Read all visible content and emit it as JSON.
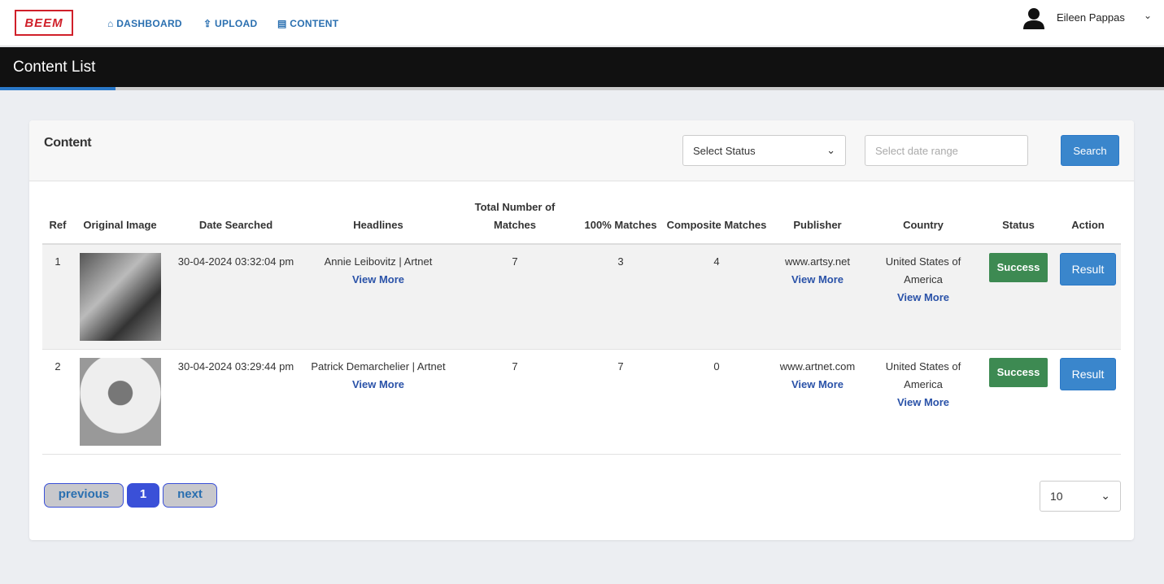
{
  "nav": {
    "logo": "BEEM",
    "links": [
      "DASHBOARD",
      "UPLOAD",
      "CONTENT"
    ],
    "user": "Eileen Pappas"
  },
  "page_title": "Content List",
  "card": {
    "title": "Content",
    "status_select": "Select Status",
    "date_placeholder": "Select date range",
    "search": "Search"
  },
  "table": {
    "headers": [
      "Ref",
      "Original Image",
      "Date Searched",
      "Headlines",
      "Total Number of Matches",
      "100% Matches",
      "Composite Matches",
      "Publisher",
      "Country",
      "Status",
      "Action"
    ],
    "view_more": "View More",
    "rows": [
      {
        "ref": 1,
        "date": "30-04-2024 03:32:04 pm",
        "headline": "Annie Leibovitz | Artnet",
        "total": 7,
        "full": 3,
        "composite": 4,
        "publisher": "www.artsy.net",
        "country": "United States of America",
        "status": "Success",
        "action": "Result"
      },
      {
        "ref": 2,
        "date": "30-04-2024 03:29:44 pm",
        "headline": "Patrick Demarchelier | Artnet",
        "total": 7,
        "full": 7,
        "composite": 0,
        "publisher": "www.artnet.com",
        "country": "United States of America",
        "status": "Success",
        "action": "Result"
      }
    ]
  },
  "pagination": {
    "previous": "previous",
    "current": 1,
    "next": "next",
    "page_size": 10
  }
}
